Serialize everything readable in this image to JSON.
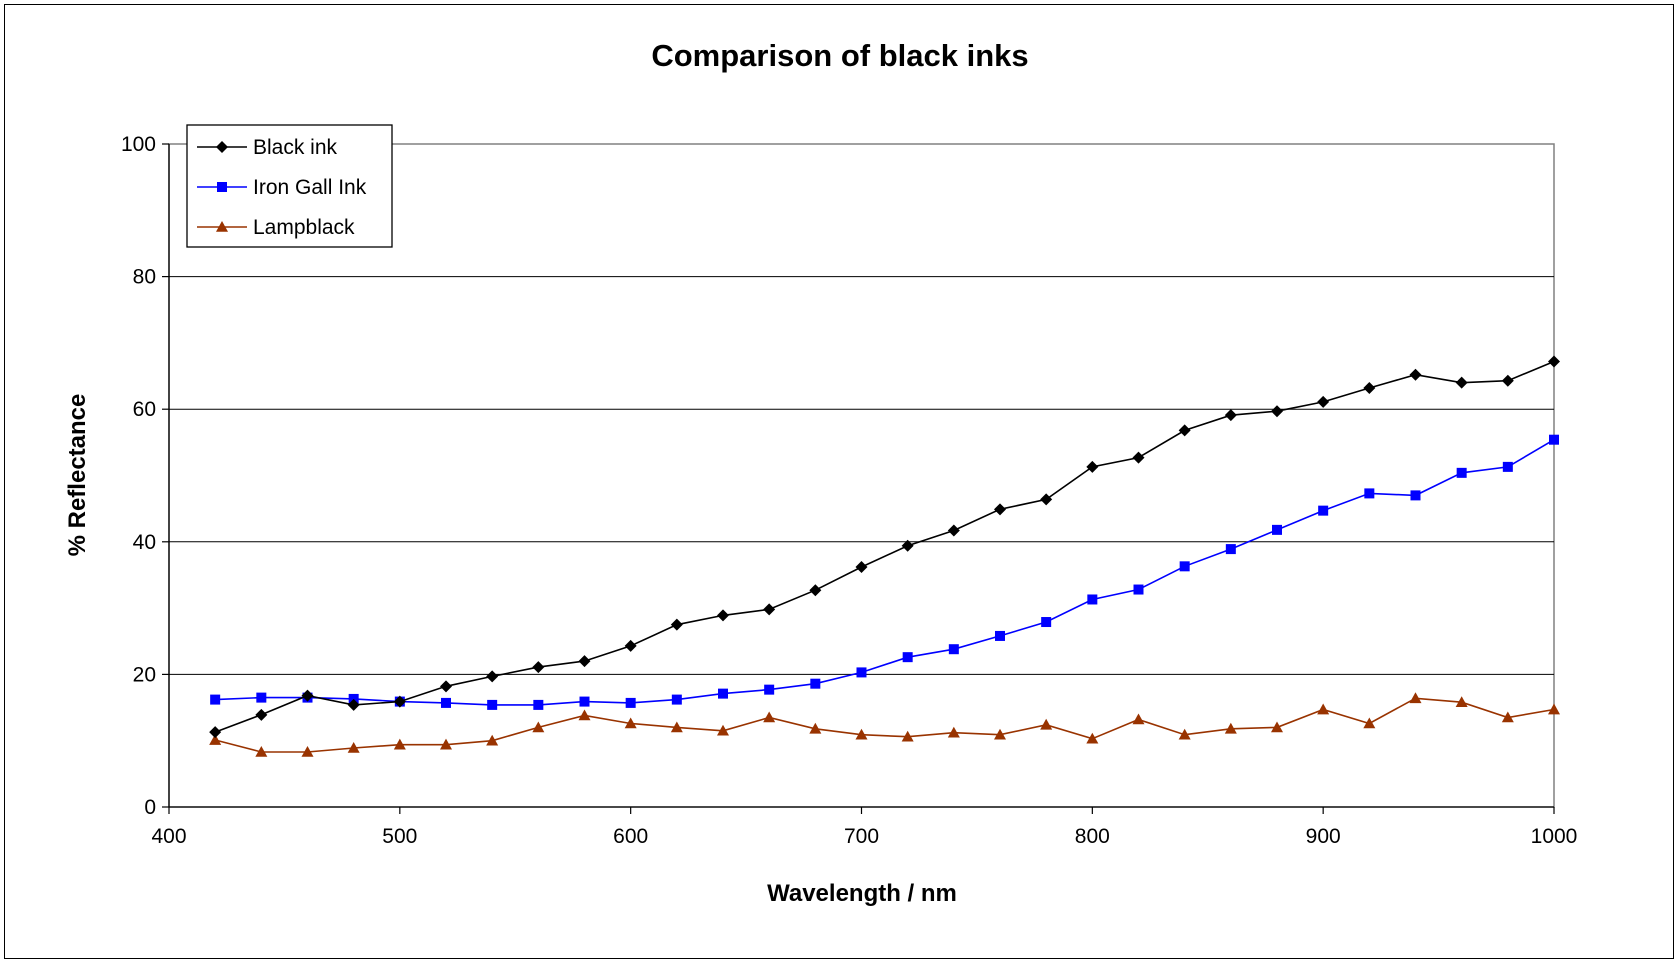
{
  "chart_data": {
    "type": "line",
    "title": "Comparison of black inks",
    "xlabel": "Wavelength / nm",
    "ylabel": "% Reflectance",
    "xlim": [
      400,
      1000
    ],
    "ylim": [
      0,
      100
    ],
    "xticks": [
      400,
      500,
      600,
      700,
      800,
      900,
      1000
    ],
    "yticks": [
      0,
      20,
      40,
      60,
      80,
      100
    ],
    "grid": "horizontal",
    "legend_position": "top-left",
    "x": [
      420,
      440,
      460,
      480,
      500,
      520,
      540,
      560,
      580,
      600,
      620,
      640,
      660,
      680,
      700,
      720,
      740,
      760,
      780,
      800,
      820,
      840,
      860,
      880,
      900,
      920,
      940,
      960,
      980,
      1000
    ],
    "series": [
      {
        "name": "Black ink",
        "color": "#000000",
        "marker": "diamond",
        "values": [
          11.3,
          13.9,
          16.8,
          15.4,
          15.9,
          18.2,
          19.7,
          21.1,
          22.0,
          24.3,
          27.5,
          28.9,
          29.8,
          32.7,
          36.2,
          39.4,
          41.7,
          44.9,
          46.4,
          51.3,
          52.7,
          56.8,
          59.1,
          59.7,
          61.1,
          63.2,
          65.2,
          64.0,
          64.3,
          67.2
        ]
      },
      {
        "name": "Iron Gall Ink",
        "color": "#0000ff",
        "marker": "square",
        "values": [
          16.2,
          16.5,
          16.5,
          16.3,
          15.9,
          15.7,
          15.4,
          15.4,
          15.9,
          15.7,
          16.2,
          17.1,
          17.7,
          18.6,
          20.3,
          22.6,
          23.8,
          25.8,
          27.9,
          31.3,
          32.8,
          36.3,
          38.9,
          41.8,
          44.7,
          47.3,
          47.0,
          50.4,
          51.3,
          55.4
        ]
      },
      {
        "name": "Lampblack",
        "color": "#993300",
        "marker": "triangle",
        "values": [
          10.1,
          8.3,
          8.3,
          8.9,
          9.4,
          9.4,
          10.0,
          12.0,
          13.8,
          12.6,
          12.0,
          11.5,
          13.5,
          11.8,
          10.9,
          10.6,
          11.2,
          10.9,
          12.4,
          10.3,
          13.2,
          10.9,
          11.8,
          12.0,
          14.7,
          12.6,
          16.4,
          15.8,
          13.5,
          14.7
        ]
      }
    ]
  }
}
